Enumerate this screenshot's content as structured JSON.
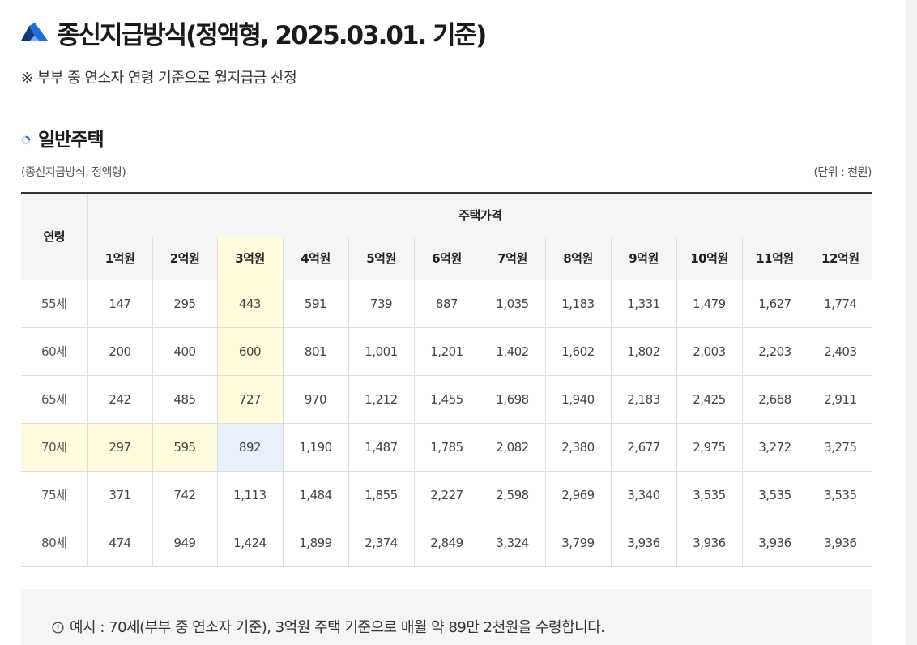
{
  "header": {
    "title": "종신지급방식(정액형, 2025.03.01. 기준)",
    "note": "※ 부부 중 연소자 연령 기준으로 월지급금 산정"
  },
  "section": {
    "title": "일반주택",
    "caption_left": "(종신지급방식, 정액형)",
    "caption_right": "(단위 : 천원)"
  },
  "table": {
    "age_header": "연령",
    "price_header": "주택가격",
    "columns": [
      "1억원",
      "2억원",
      "3억원",
      "4억원",
      "5억원",
      "6억원",
      "7억원",
      "8억원",
      "9억원",
      "10억원",
      "11억원",
      "12억원"
    ],
    "rows": [
      {
        "age": "55세",
        "values": [
          "147",
          "295",
          "443",
          "591",
          "739",
          "887",
          "1,035",
          "1,183",
          "1,331",
          "1,479",
          "1,627",
          "1,774"
        ]
      },
      {
        "age": "60세",
        "values": [
          "200",
          "400",
          "600",
          "801",
          "1,001",
          "1,201",
          "1,402",
          "1,602",
          "1,802",
          "2,003",
          "2,203",
          "2,403"
        ]
      },
      {
        "age": "65세",
        "values": [
          "242",
          "485",
          "727",
          "970",
          "1,212",
          "1,455",
          "1,698",
          "1,940",
          "2,183",
          "2,425",
          "2,668",
          "2,911"
        ]
      },
      {
        "age": "70세",
        "values": [
          "297",
          "595",
          "892",
          "1,190",
          "1,487",
          "1,785",
          "2,082",
          "2,380",
          "2,677",
          "2,975",
          "3,272",
          "3,275"
        ]
      },
      {
        "age": "75세",
        "values": [
          "371",
          "742",
          "1,113",
          "1,484",
          "1,855",
          "2,227",
          "2,598",
          "2,969",
          "3,340",
          "3,535",
          "3,535",
          "3,535"
        ]
      },
      {
        "age": "80세",
        "values": [
          "474",
          "949",
          "1,424",
          "1,899",
          "2,374",
          "2,849",
          "3,324",
          "3,799",
          "3,936",
          "3,936",
          "3,936",
          "3,936"
        ]
      }
    ]
  },
  "example": {
    "text": "예시 : 70세(부부 중 연소자 기준), 3억원 주택 기준으로 매월 약 89만 2천원을 수령합니다."
  },
  "colors": {
    "logo_primary": "#1f6fd6",
    "logo_secondary": "#123a7a",
    "highlight_yellow": "#fffbdd",
    "highlight_blue": "#e9effb"
  },
  "icons": {
    "logo": "brand-logo-icon",
    "section_bullet": "ring-bullet-icon",
    "info": "info-circle-icon"
  }
}
